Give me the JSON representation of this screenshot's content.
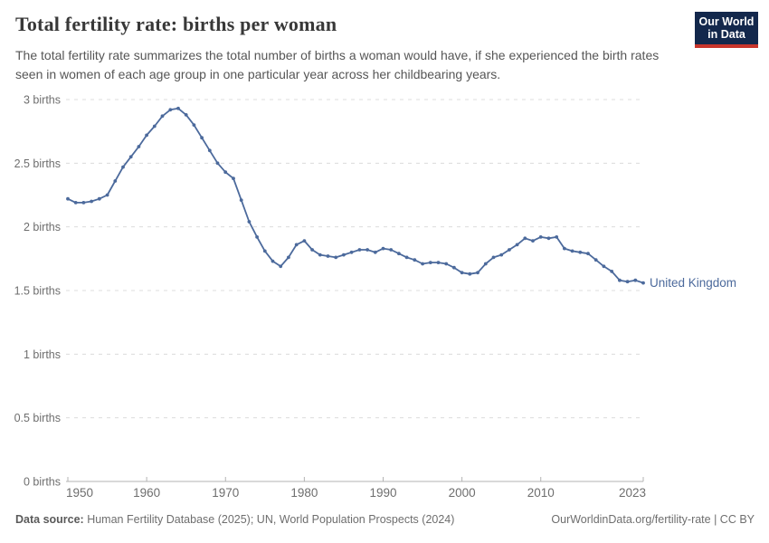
{
  "header": {
    "title": "Total fertility rate: births per woman",
    "subtitle": "The total fertility rate summarizes the total number of births a woman would have, if she experienced the birth rates seen in women of each age group in one particular year across her childbearing years.",
    "logo": {
      "line1": "Our World",
      "line2": "in Data"
    }
  },
  "footer": {
    "data_source_label": "Data source:",
    "data_source_text": " Human Fertility Database (2025); UN, World Population Prospects (2024)",
    "link_text": "OurWorldinData.org/fertility-rate | CC BY"
  },
  "colors": {
    "line": "#4C6A9C",
    "entity_label": "#4C6A9C",
    "grid": "#dcdcdc",
    "axis": "#b3b3b3",
    "tick_text": "#6e6e6e",
    "logo_bg": "#13284C",
    "logo_red": "#C8352C"
  },
  "chart_data": {
    "type": "line",
    "title": "Total fertility rate: births per woman",
    "xlabel": "",
    "ylabel": "births",
    "grid": "horizontal-dashed",
    "legend_position": "end-of-line-label",
    "xlim": [
      1950,
      2023
    ],
    "ylim": [
      0,
      3
    ],
    "xticks": [
      1950,
      1960,
      1970,
      1980,
      1990,
      2000,
      2010,
      2023
    ],
    "yticks": [
      0,
      0.5,
      1,
      1.5,
      2,
      2.5,
      3
    ],
    "ytick_labels": [
      "0 births",
      "0.5 births",
      "1 births",
      "1.5 births",
      "2 births",
      "2.5 births",
      "3 births"
    ],
    "series": [
      {
        "name": "United Kingdom",
        "color": "#4C6A9C",
        "x": [
          1950,
          1951,
          1952,
          1953,
          1954,
          1955,
          1956,
          1957,
          1958,
          1959,
          1960,
          1961,
          1962,
          1963,
          1964,
          1965,
          1966,
          1967,
          1968,
          1969,
          1970,
          1971,
          1972,
          1973,
          1974,
          1975,
          1976,
          1977,
          1978,
          1979,
          1980,
          1981,
          1982,
          1983,
          1984,
          1985,
          1986,
          1987,
          1988,
          1989,
          1990,
          1991,
          1992,
          1993,
          1994,
          1995,
          1996,
          1997,
          1998,
          1999,
          2000,
          2001,
          2002,
          2003,
          2004,
          2005,
          2006,
          2007,
          2008,
          2009,
          2010,
          2011,
          2012,
          2013,
          2014,
          2015,
          2016,
          2017,
          2018,
          2019,
          2020,
          2021,
          2022,
          2023
        ],
        "values": [
          2.22,
          2.19,
          2.19,
          2.2,
          2.22,
          2.25,
          2.36,
          2.47,
          2.55,
          2.63,
          2.72,
          2.79,
          2.87,
          2.92,
          2.93,
          2.88,
          2.8,
          2.7,
          2.6,
          2.5,
          2.43,
          2.38,
          2.21,
          2.04,
          1.92,
          1.81,
          1.73,
          1.69,
          1.76,
          1.86,
          1.89,
          1.82,
          1.78,
          1.77,
          1.76,
          1.78,
          1.8,
          1.82,
          1.82,
          1.8,
          1.83,
          1.82,
          1.79,
          1.76,
          1.74,
          1.71,
          1.72,
          1.72,
          1.71,
          1.68,
          1.64,
          1.63,
          1.64,
          1.71,
          1.76,
          1.78,
          1.82,
          1.86,
          1.91,
          1.89,
          1.92,
          1.91,
          1.92,
          1.83,
          1.81,
          1.8,
          1.79,
          1.74,
          1.69,
          1.65,
          1.58,
          1.57,
          1.58,
          1.56
        ]
      }
    ]
  }
}
